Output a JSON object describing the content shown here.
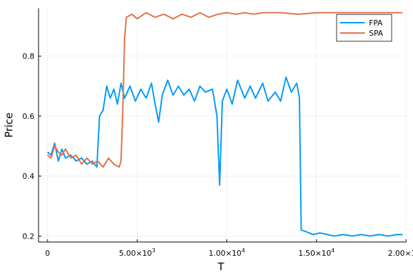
{
  "chart_data": {
    "type": "line",
    "title": "",
    "xlabel": "T",
    "ylabel": "Price",
    "xlim": [
      -500,
      20000
    ],
    "ylim": [
      0.18,
      0.96
    ],
    "x_ticks": [
      {
        "value": 0,
        "base": "0",
        "exp": ""
      },
      {
        "value": 5000,
        "base": "5.00×10",
        "exp": "3"
      },
      {
        "value": 10000,
        "base": "1.00×10",
        "exp": "4"
      },
      {
        "value": 15000,
        "base": "1.50×10",
        "exp": "4"
      },
      {
        "value": 20000,
        "base": "2.00×10",
        "exp": "4"
      }
    ],
    "y_ticks": [
      {
        "value": 0.2,
        "label": "0.2"
      },
      {
        "value": 0.4,
        "label": "0.4"
      },
      {
        "value": 0.6,
        "label": "0.6"
      },
      {
        "value": 0.8,
        "label": "0.8"
      }
    ],
    "grid": true,
    "legend_position": "top-right",
    "series": [
      {
        "name": "FPA",
        "color": "#009AFA",
        "points": [
          [
            0,
            0.48
          ],
          [
            200,
            0.47
          ],
          [
            400,
            0.51
          ],
          [
            600,
            0.45
          ],
          [
            800,
            0.49
          ],
          [
            1000,
            0.46
          ],
          [
            1300,
            0.47
          ],
          [
            1600,
            0.45
          ],
          [
            1900,
            0.46
          ],
          [
            2200,
            0.44
          ],
          [
            2500,
            0.45
          ],
          [
            2750,
            0.43
          ],
          [
            2900,
            0.6
          ],
          [
            3100,
            0.62
          ],
          [
            3300,
            0.7
          ],
          [
            3500,
            0.66
          ],
          [
            3700,
            0.69
          ],
          [
            3900,
            0.64
          ],
          [
            4100,
            0.71
          ],
          [
            4300,
            0.66
          ],
          [
            4600,
            0.7
          ],
          [
            4900,
            0.65
          ],
          [
            5200,
            0.69
          ],
          [
            5500,
            0.66
          ],
          [
            5800,
            0.71
          ],
          [
            6000,
            0.64
          ],
          [
            6200,
            0.58
          ],
          [
            6400,
            0.67
          ],
          [
            6700,
            0.72
          ],
          [
            7000,
            0.67
          ],
          [
            7300,
            0.7
          ],
          [
            7600,
            0.67
          ],
          [
            7900,
            0.69
          ],
          [
            8200,
            0.65
          ],
          [
            8500,
            0.7
          ],
          [
            8800,
            0.68
          ],
          [
            9200,
            0.69
          ],
          [
            9450,
            0.6
          ],
          [
            9600,
            0.37
          ],
          [
            9750,
            0.65
          ],
          [
            10000,
            0.69
          ],
          [
            10300,
            0.64
          ],
          [
            10600,
            0.72
          ],
          [
            11000,
            0.66
          ],
          [
            11300,
            0.7
          ],
          [
            11600,
            0.66
          ],
          [
            12000,
            0.71
          ],
          [
            12300,
            0.65
          ],
          [
            12700,
            0.68
          ],
          [
            13000,
            0.65
          ],
          [
            13300,
            0.73
          ],
          [
            13600,
            0.68
          ],
          [
            13900,
            0.71
          ],
          [
            14050,
            0.66
          ],
          [
            14150,
            0.22
          ],
          [
            14400,
            0.215
          ],
          [
            14800,
            0.205
          ],
          [
            15200,
            0.21
          ],
          [
            15600,
            0.205
          ],
          [
            16000,
            0.2
          ],
          [
            16500,
            0.205
          ],
          [
            17000,
            0.2
          ],
          [
            17500,
            0.205
          ],
          [
            18000,
            0.2
          ],
          [
            18500,
            0.205
          ],
          [
            19000,
            0.2
          ],
          [
            19500,
            0.205
          ],
          [
            19800,
            0.205
          ]
        ]
      },
      {
        "name": "SPA",
        "color": "#E26F46",
        "points": [
          [
            0,
            0.47
          ],
          [
            200,
            0.46
          ],
          [
            400,
            0.5
          ],
          [
            600,
            0.48
          ],
          [
            800,
            0.47
          ],
          [
            1000,
            0.49
          ],
          [
            1300,
            0.46
          ],
          [
            1600,
            0.47
          ],
          [
            1900,
            0.44
          ],
          [
            2200,
            0.46
          ],
          [
            2500,
            0.44
          ],
          [
            2800,
            0.45
          ],
          [
            3100,
            0.43
          ],
          [
            3400,
            0.46
          ],
          [
            3700,
            0.44
          ],
          [
            4000,
            0.43
          ],
          [
            4100,
            0.45
          ],
          [
            4200,
            0.62
          ],
          [
            4300,
            0.86
          ],
          [
            4400,
            0.93
          ],
          [
            4700,
            0.94
          ],
          [
            5000,
            0.925
          ],
          [
            5500,
            0.945
          ],
          [
            6000,
            0.93
          ],
          [
            6500,
            0.94
          ],
          [
            7000,
            0.925
          ],
          [
            7500,
            0.94
          ],
          [
            8000,
            0.93
          ],
          [
            8500,
            0.945
          ],
          [
            9000,
            0.93
          ],
          [
            9500,
            0.94
          ],
          [
            10000,
            0.945
          ],
          [
            10500,
            0.94
          ],
          [
            11000,
            0.945
          ],
          [
            11500,
            0.94
          ],
          [
            12000,
            0.945
          ],
          [
            13000,
            0.945
          ],
          [
            14000,
            0.94
          ],
          [
            15000,
            0.945
          ],
          [
            16000,
            0.945
          ],
          [
            17000,
            0.945
          ],
          [
            18000,
            0.945
          ],
          [
            19000,
            0.945
          ],
          [
            19800,
            0.945
          ]
        ]
      }
    ]
  }
}
